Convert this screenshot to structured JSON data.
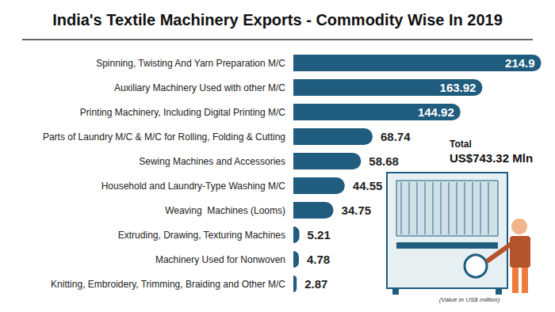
{
  "chart_data": {
    "type": "bar",
    "orientation": "horizontal",
    "title": "India's Textile Machinery Exports - Commodity Wise In 2019",
    "categories": [
      "Spinning, Twisting And Yarn Preparation M/C",
      "Auxiliary Machinery Used with other M/C",
      "Printing Machinery, Including Digital Printing M/C",
      "Parts of Laundry M/C & M/C for Rolling, Folding & Cutting",
      "Sewing Machines and Accessories",
      "Household and Laundry-Type Washing M/C",
      "Weaving  Machines (Looms)",
      "Extruding, Drawing, Texturing Machines",
      "Machinery Used for Nonwoven",
      "Knitting, Embroidery, Trimming, Braiding and Other M/C"
    ],
    "values": [
      214.9,
      163.92,
      144.92,
      68.74,
      58.68,
      44.55,
      34.75,
      5.21,
      4.78,
      2.87
    ],
    "color": "#1f5c7e",
    "xlim": [
      0,
      220
    ],
    "xticks": [
      0,
      220
    ],
    "grid": false,
    "data_labels": true,
    "tick_labels": "y",
    "annotations": [
      "Total",
      "US$743.32 Mln",
      "(Value in US$ million)"
    ]
  }
}
